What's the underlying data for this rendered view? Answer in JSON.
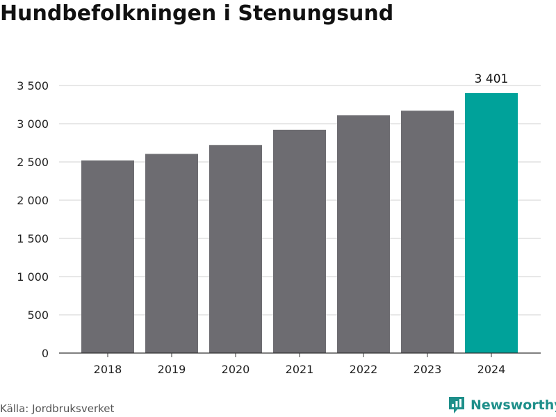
{
  "title": "Hundbefolkningen i Stenungsund",
  "source": "Källa: Jordbruksverket",
  "brand": {
    "name": "Newsworthy",
    "icon": "newsworthy-logo-icon",
    "color": "#1e8f8a"
  },
  "chart_data": {
    "type": "bar",
    "title": "Hundbefolkningen i Stenungsund",
    "xlabel": "",
    "ylabel": "",
    "categories": [
      "2018",
      "2019",
      "2020",
      "2021",
      "2022",
      "2023",
      "2024"
    ],
    "values": [
      2520,
      2605,
      2720,
      2920,
      3110,
      3170,
      3401
    ],
    "ylim": [
      0,
      3500
    ],
    "yticks": [
      0,
      500,
      1000,
      1500,
      2000,
      2500,
      3000,
      3500
    ],
    "ytick_labels": [
      "0",
      "500",
      "1 000",
      "1 500",
      "2 000",
      "2 500",
      "3 000",
      "3 500"
    ],
    "grid": true,
    "legend": "none",
    "data_labels": [
      {
        "category": "2024",
        "text": "3 401"
      }
    ],
    "colors": {
      "bar": "#6d6c71",
      "highlight": "#00a29a",
      "grid": "#d9d9d9",
      "axis": "#333333",
      "text": "#222222"
    },
    "highlight_category": "2024"
  }
}
